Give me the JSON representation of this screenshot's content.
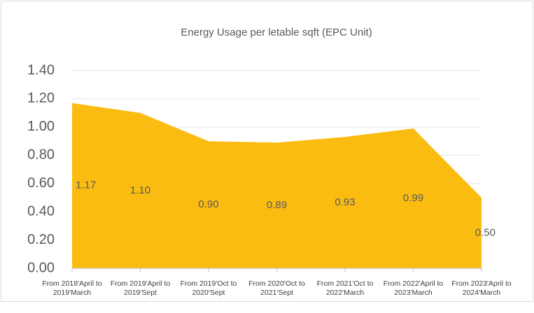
{
  "chart_data": {
    "type": "area",
    "title": "Energy Usage per letable sqft (EPC Unit)",
    "categories": [
      "From 2018'April to 2019'March",
      "From 2019'April to 2019'Sept",
      "From 2019'Oct to 2020'Sept",
      "From 2020'Oct to 2021'Sept",
      "From 2021'Oct to 2022'March",
      "From 2022'April to 2023'March",
      "From 2023'April to 2024'March"
    ],
    "values": [
      1.17,
      1.1,
      0.9,
      0.89,
      0.93,
      0.99,
      0.5
    ],
    "value_labels": [
      "1.17",
      "1.10",
      "0.90",
      "0.89",
      "0.93",
      "0.99",
      "0.50"
    ],
    "color": "#fbbc12",
    "ylim": [
      0,
      1.4
    ],
    "yticks": [
      {
        "value": 0,
        "label": "0.00"
      },
      {
        "value": 0.2,
        "label": "0.20"
      },
      {
        "value": 0.4,
        "label": "0.40"
      },
      {
        "value": 0.6,
        "label": "0.60"
      },
      {
        "value": 0.8,
        "label": "0.80"
      },
      {
        "value": 1.0,
        "label": "1.00"
      },
      {
        "value": 1.2,
        "label": "1.20"
      },
      {
        "value": 1.4,
        "label": "1.40"
      }
    ],
    "grid": true
  }
}
